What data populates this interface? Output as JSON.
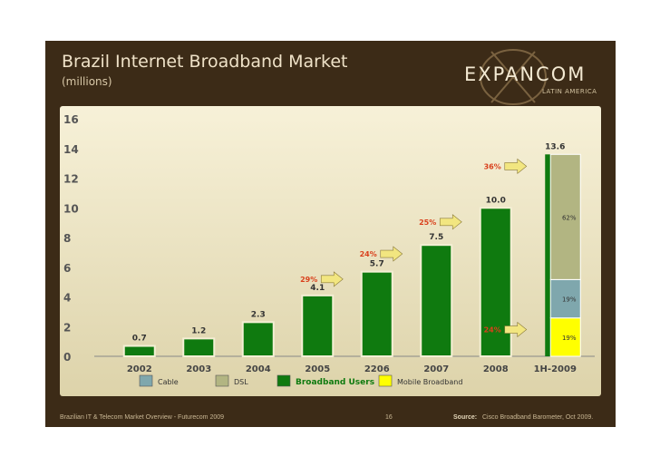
{
  "slide": {
    "title": "Brazil Internet Broadband Market",
    "subtitle": "(millions)",
    "logo_name": "EXPANCOM",
    "logo_tagline": "LATIN AMERICA",
    "footer_left": "Brazilian IT & Telecom Market Overview - Futurecom 2009",
    "page_number": "16",
    "source_label": "Source:",
    "source_text": "Cisco Broadband Barometer, Oct 2009."
  },
  "colors": {
    "background": "#3c2b17",
    "panel": "#f2ecd0",
    "broadband": "#0f7a0f",
    "cable": "#7fa7ad",
    "dsl": "#b2b582",
    "mobile": "#ffff00",
    "growth_label": "#d9401c",
    "arrow": "#f2e680"
  },
  "chart_data": {
    "type": "bar",
    "title": "Brazil Internet Broadband Market",
    "ylabel": "(millions)",
    "ylim": [
      0,
      16
    ],
    "yticks": [
      "0",
      "2",
      "4",
      "6",
      "8",
      "10",
      "12",
      "14",
      "16"
    ],
    "grid": false,
    "legend_position": "bottom",
    "categories": [
      "2002",
      "2003",
      "2004",
      "2005",
      "2206",
      "2007",
      "2008",
      "1H-2009"
    ],
    "series": [
      {
        "name": "Broadband Users",
        "values": [
          0.7,
          1.2,
          2.3,
          4.1,
          5.7,
          7.5,
          10.0,
          13.6
        ]
      }
    ],
    "value_labels": [
      "0.7",
      "1.2",
      "2.3",
      "4.1",
      "5.7",
      "7.5",
      "10.0",
      "13.6"
    ],
    "growth_annotations": [
      {
        "after": "2005",
        "label": "29%"
      },
      {
        "after": "2206",
        "label": "24%"
      },
      {
        "after": "2007",
        "label": "25%"
      },
      {
        "after": "2008",
        "label": "36%"
      },
      {
        "after": "2008",
        "label": "24%"
      }
    ],
    "breakdown_1H2009": {
      "total": 13.6,
      "segments": [
        {
          "name": "Mobile Broadband",
          "share": 0.19,
          "label": "19%"
        },
        {
          "name": "Cable",
          "share": 0.19,
          "label": "19%"
        },
        {
          "name": "DSL",
          "share": 0.62,
          "label": "62%"
        }
      ]
    },
    "legend": [
      "Cable",
      "DSL",
      "Broadband Users",
      "Mobile Broadband"
    ]
  }
}
